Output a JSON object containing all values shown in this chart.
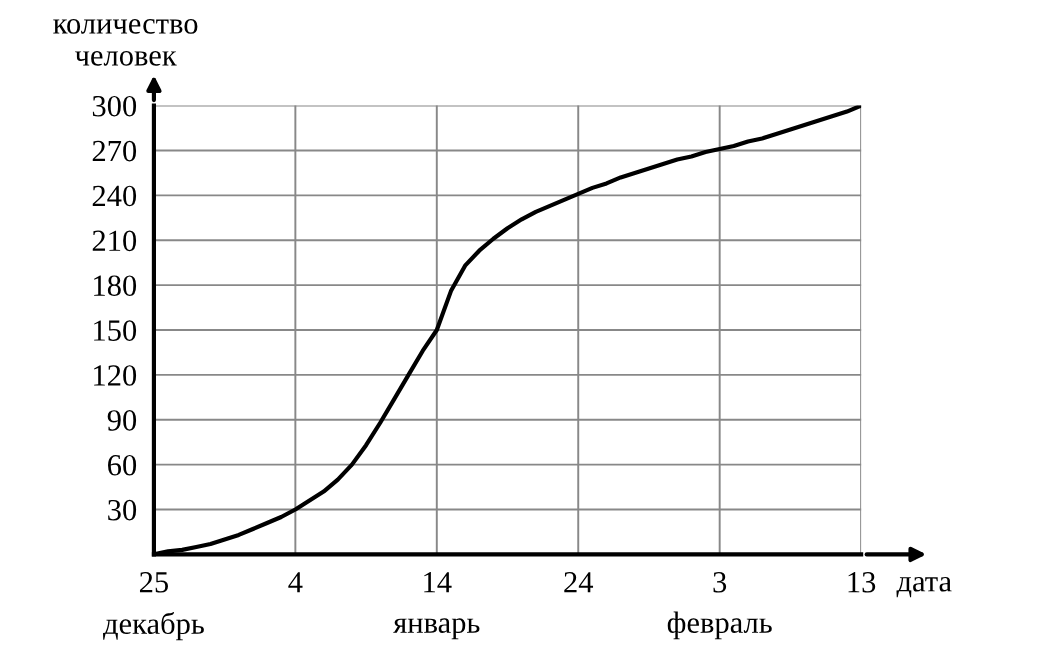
{
  "chart_data": {
    "type": "line",
    "xlabel": "дата",
    "ylabel": "количество\nчеловек",
    "categories": [
      "25\nдекабрь",
      null,
      null,
      null,
      null,
      null,
      null,
      null,
      null,
      null,
      "4",
      null,
      null,
      null,
      null,
      null,
      null,
      null,
      null,
      null,
      "14\nянварь",
      null,
      null,
      null,
      null,
      null,
      null,
      null,
      null,
      null,
      "24",
      null,
      null,
      null,
      null,
      null,
      null,
      null,
      null,
      null,
      "3\nфевраль",
      null,
      null,
      null,
      null,
      null,
      null,
      null,
      null,
      null,
      "13"
    ],
    "series": [
      {
        "color": "#000000",
        "values": [
          0,
          2,
          3,
          5,
          7,
          10,
          13,
          17,
          21,
          25,
          30,
          36,
          42,
          50,
          60,
          73,
          88,
          104,
          120,
          136,
          150,
          176,
          193,
          203,
          211,
          218,
          224,
          229,
          233,
          237,
          241,
          245,
          248,
          252,
          255,
          258,
          261,
          264,
          266,
          269,
          271,
          273,
          276,
          278,
          281,
          284,
          287,
          290,
          293,
          296,
          300
        ]
      }
    ],
    "ylim": [
      0,
      300
    ],
    "yticks": [
      30,
      60,
      90,
      120,
      150,
      180,
      210,
      240,
      270,
      300
    ],
    "grid": true,
    "marker": "none",
    "line_style": "solid",
    "legend": false
  }
}
